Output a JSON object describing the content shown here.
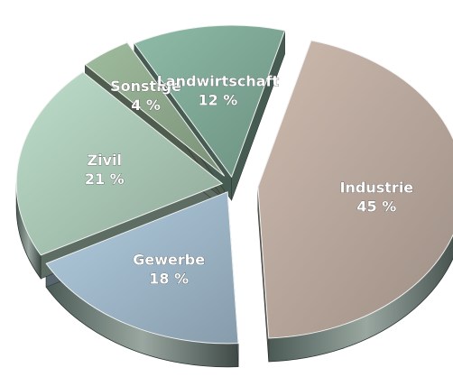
{
  "chart_data": {
    "type": "pie",
    "style": "3d exploded",
    "slices": [
      {
        "label": "Industrie",
        "value_label": "45 %",
        "value": 45,
        "color": "#b8a79c"
      },
      {
        "label": "Gewerbe",
        "value_label": "18 %",
        "value": 18,
        "color": "#9fb8c9"
      },
      {
        "label": "Zivil",
        "value_label": "21 %",
        "value": 21,
        "color": "#a9c6b4"
      },
      {
        "label": "Sonstige",
        "value_label": "4 %",
        "value": 4,
        "color": "#8fa98d"
      },
      {
        "label": "Landwirtschaft",
        "value_label": "12 %",
        "value": 12,
        "color": "#7fa896"
      }
    ]
  }
}
